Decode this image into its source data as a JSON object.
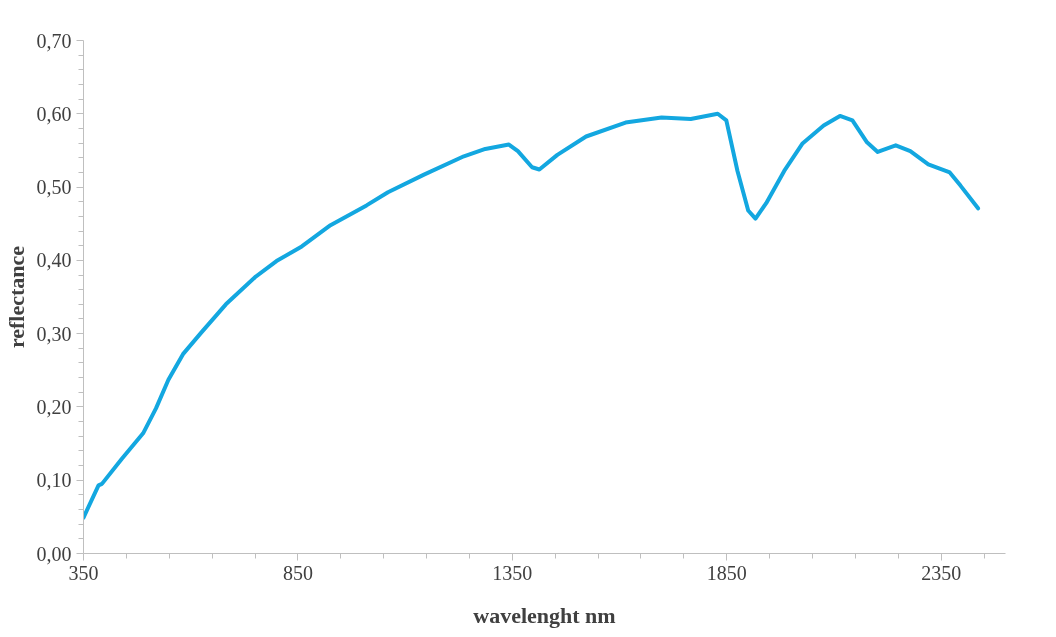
{
  "chart_data": {
    "type": "line",
    "xlabel": "wavelenght nm",
    "ylabel": "reflectance",
    "x": [
      350,
      385,
      393,
      439,
      489,
      519,
      548,
      582,
      624,
      682,
      750,
      800,
      859,
      926,
      1010,
      1060,
      1144,
      1237,
      1287,
      1342,
      1363,
      1396,
      1413,
      1455,
      1522,
      1614,
      1698,
      1766,
      1829,
      1849,
      1875,
      1900,
      1917,
      1942,
      1984,
      2026,
      2076,
      2114,
      2143,
      2177,
      2202,
      2244,
      2278,
      2320,
      2370,
      2395,
      2436
    ],
    "series": [
      {
        "color": "#13a7e0",
        "values": [
          0.049,
          0.093,
          0.095,
          0.129,
          0.164,
          0.198,
          0.237,
          0.272,
          0.301,
          0.34,
          0.377,
          0.399,
          0.419,
          0.448,
          0.475,
          0.493,
          0.517,
          0.542,
          0.552,
          0.558,
          0.549,
          0.527,
          0.524,
          0.544,
          0.569,
          0.588,
          0.595,
          0.593,
          0.6,
          0.591,
          0.522,
          0.468,
          0.457,
          0.478,
          0.522,
          0.559,
          0.584,
          0.597,
          0.591,
          0.561,
          0.548,
          0.557,
          0.549,
          0.531,
          0.52,
          0.502,
          0.471
        ]
      }
    ],
    "xlim": [
      350,
      2500
    ],
    "xticks": [
      350,
      {
        "value": 450,
        "label": null
      },
      {
        "value": 550,
        "label": null
      },
      {
        "value": 650,
        "label": null
      },
      {
        "value": 750,
        "label": null
      },
      850,
      {
        "value": 950,
        "label": null
      },
      {
        "value": 1050,
        "label": null
      },
      {
        "value": 1150,
        "label": null
      },
      {
        "value": 1250,
        "label": null
      },
      1350,
      {
        "value": 1450,
        "label": null
      },
      {
        "value": 1550,
        "label": null
      },
      {
        "value": 1650,
        "label": null
      },
      {
        "value": 1750,
        "label": null
      },
      1850,
      {
        "value": 1950,
        "label": null
      },
      {
        "value": 2050,
        "label": null
      },
      {
        "value": 2150,
        "label": null
      },
      {
        "value": 2250,
        "label": null
      },
      2350,
      {
        "value": 2450,
        "label": null
      }
    ],
    "ylim": [
      0,
      0.7
    ],
    "yticks": [
      {
        "value": 0,
        "label": "0,00"
      },
      {
        "value": 0.02,
        "label": null
      },
      {
        "value": 0.04,
        "label": null
      },
      {
        "value": 0.06,
        "label": null
      },
      {
        "value": 0.08,
        "label": null
      },
      {
        "value": 0.1,
        "label": "0,10"
      },
      {
        "value": 0.12,
        "label": null
      },
      {
        "value": 0.14,
        "label": null
      },
      {
        "value": 0.16,
        "label": null
      },
      {
        "value": 0.18,
        "label": null
      },
      {
        "value": 0.2,
        "label": "0,20"
      },
      {
        "value": 0.22,
        "label": null
      },
      {
        "value": 0.24,
        "label": null
      },
      {
        "value": 0.26,
        "label": null
      },
      {
        "value": 0.28,
        "label": null
      },
      {
        "value": 0.3,
        "label": "0,30"
      },
      {
        "value": 0.32,
        "label": null
      },
      {
        "value": 0.34,
        "label": null
      },
      {
        "value": 0.36,
        "label": null
      },
      {
        "value": 0.38,
        "label": null
      },
      {
        "value": 0.4,
        "label": "0,40"
      },
      {
        "value": 0.42,
        "label": null
      },
      {
        "value": 0.44,
        "label": null
      },
      {
        "value": 0.46,
        "label": null
      },
      {
        "value": 0.48,
        "label": null
      },
      {
        "value": 0.5,
        "label": "0,50"
      },
      {
        "value": 0.52,
        "label": null
      },
      {
        "value": 0.54,
        "label": null
      },
      {
        "value": 0.56,
        "label": null
      },
      {
        "value": 0.58,
        "label": null
      },
      {
        "value": 0.6,
        "label": "0,60"
      },
      {
        "value": 0.62,
        "label": null
      },
      {
        "value": 0.64,
        "label": null
      },
      {
        "value": 0.66,
        "label": null
      },
      {
        "value": 0.68,
        "label": null
      },
      {
        "value": 0.7,
        "label": "0,70"
      }
    ],
    "grid": false,
    "marker": "none",
    "line_style": "solid"
  }
}
